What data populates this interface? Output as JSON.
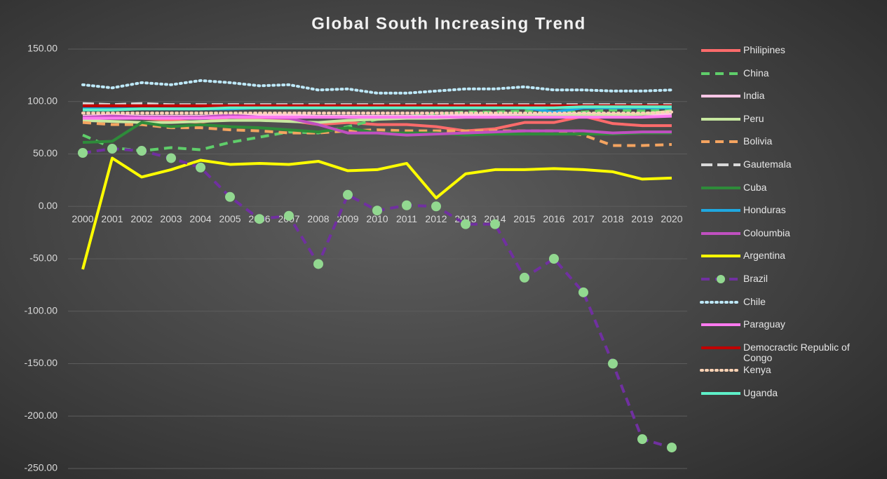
{
  "chart_data": {
    "type": "line",
    "title": "Global South Increasing Trend",
    "categories": [
      "2000",
      "2001",
      "2002",
      "2003",
      "2004",
      "2005",
      "2006",
      "2007",
      "2008",
      "2009",
      "2010",
      "2011",
      "2012",
      "2013",
      "2014",
      "2015",
      "2016",
      "2017",
      "2018",
      "2019",
      "2020"
    ],
    "ylim": [
      -250,
      150
    ],
    "yticks": [
      {
        "value": -250,
        "label": "-250.00"
      },
      {
        "value": -200,
        "label": "-200.00"
      },
      {
        "value": -150,
        "label": "-150.00"
      },
      {
        "value": -100,
        "label": "-100.00"
      },
      {
        "value": -50,
        "label": "-50.00"
      },
      {
        "value": 0,
        "label": "0.00"
      },
      {
        "value": 50,
        "label": "50.00"
      },
      {
        "value": 100,
        "label": "100.00"
      },
      {
        "value": 150,
        "label": "150.00"
      }
    ],
    "grid": true,
    "legend": "right",
    "series": [
      {
        "name": "Philipines",
        "color": "#ff6b6b",
        "dash": "solid",
        "values": [
          83,
          86,
          84,
          82,
          80,
          85,
          84,
          82,
          78,
          80,
          78,
          78,
          76,
          72,
          74,
          80,
          80,
          86,
          79,
          77,
          77
        ]
      },
      {
        "name": "China",
        "color": "#5fce6a",
        "dash": "dashed",
        "values": [
          68,
          56,
          53,
          56,
          54,
          61,
          66,
          71,
          70,
          76,
          83,
          86,
          88,
          90,
          90,
          91,
          90,
          90,
          92,
          91,
          92
        ]
      },
      {
        "name": "India",
        "color": "#ffc6e6",
        "dash": "solid",
        "values": [
          86,
          87,
          86,
          86,
          86,
          87,
          87,
          87,
          86,
          86,
          86,
          86,
          86,
          87,
          87,
          87,
          88,
          88,
          88,
          88,
          88
        ]
      },
      {
        "name": "Peru",
        "color": "#c7e8a0",
        "dash": "solid",
        "values": [
          82,
          81,
          80,
          80,
          81,
          82,
          82,
          81,
          80,
          82,
          83,
          84,
          84,
          85,
          85,
          86,
          86,
          87,
          87,
          88,
          91
        ]
      },
      {
        "name": "Bolivia",
        "color": "#f4a460",
        "dash": "dashed",
        "values": [
          80,
          78,
          78,
          75,
          75,
          73,
          72,
          70,
          70,
          72,
          73,
          72,
          72,
          72,
          72,
          72,
          72,
          68,
          58,
          58,
          59
        ]
      },
      {
        "name": "Gautemala",
        "color": "#d9d9d9",
        "dash": "longdash",
        "values": [
          98,
          97,
          98,
          97,
          97,
          97,
          97,
          97,
          97,
          97,
          97,
          97,
          97,
          97,
          97,
          97,
          97,
          97,
          97,
          97,
          97
        ]
      },
      {
        "name": "Cuba",
        "color": "#2e8b3a",
        "dash": "solid",
        "values": [
          61,
          62,
          80,
          76,
          78,
          76,
          75,
          73,
          71,
          75,
          70,
          70,
          70,
          68,
          69,
          69,
          69,
          69,
          69,
          70,
          70
        ]
      },
      {
        "name": "Honduras",
        "color": "#1fa8e0",
        "dash": "solid",
        "values": [
          93,
          93,
          93,
          93,
          93,
          93,
          94,
          94,
          94,
          94,
          94,
          95,
          95,
          95,
          95,
          94,
          90,
          94,
          94,
          94,
          94
        ]
      },
      {
        "name": "Coloumbia",
        "color": "#c050c0",
        "dash": "solid",
        "values": [
          85,
          86,
          85,
          85,
          85,
          87,
          85,
          84,
          78,
          70,
          70,
          68,
          69,
          70,
          71,
          72,
          72,
          72,
          70,
          71,
          71
        ]
      },
      {
        "name": "Argentina",
        "color": "#ffff00",
        "dash": "solid",
        "values": [
          -60,
          46,
          28,
          35,
          44,
          40,
          41,
          40,
          43,
          34,
          35,
          41,
          8,
          31,
          35,
          35,
          36,
          35,
          33,
          26,
          27
        ]
      },
      {
        "name": "Brazil",
        "color": "#7030a0",
        "dash": "dashed",
        "marker": "#92d890",
        "values": [
          51,
          55,
          53,
          46,
          37,
          9,
          -12,
          -9,
          -55,
          11,
          -4,
          1,
          0,
          -17,
          -17,
          -68,
          -50,
          -82,
          -150,
          -222,
          -230
        ]
      },
      {
        "name": "Chile",
        "color": "#bde8f8",
        "dash": "dotted",
        "values": [
          116,
          113,
          118,
          116,
          120,
          118,
          115,
          116,
          111,
          112,
          108,
          108,
          110,
          112,
          112,
          114,
          111,
          111,
          110,
          110,
          111
        ]
      },
      {
        "name": "Paraguay",
        "color": "#ff7af0",
        "dash": "solid",
        "values": [
          84,
          84,
          84,
          84,
          84,
          85,
          85,
          85,
          85,
          85,
          85,
          85,
          85,
          85,
          85,
          85,
          85,
          85,
          85,
          85,
          86
        ]
      },
      {
        "name": "Democractic Republic of Congo",
        "color": "#c00000",
        "dash": "solid",
        "values": [
          96,
          96,
          96,
          96,
          96,
          96,
          96,
          96,
          96,
          96,
          96,
          96,
          96,
          96,
          96,
          96,
          96,
          96,
          96,
          96,
          96
        ]
      },
      {
        "name": "Kenya",
        "color": "#ffd3b5",
        "dash": "dotted",
        "values": [
          89,
          89,
          89,
          89,
          89,
          89,
          89,
          89,
          89,
          89,
          89,
          89,
          89,
          89,
          89,
          89,
          89,
          89,
          89,
          89,
          90
        ]
      },
      {
        "name": "Uganda",
        "color": "#5ef0c8",
        "dash": "solid",
        "values": [
          92,
          92,
          93,
          93,
          93,
          94,
          94,
          94,
          94,
          94,
          94,
          94,
          94,
          94,
          94,
          94,
          94,
          95,
          95,
          95,
          95
        ]
      }
    ]
  }
}
